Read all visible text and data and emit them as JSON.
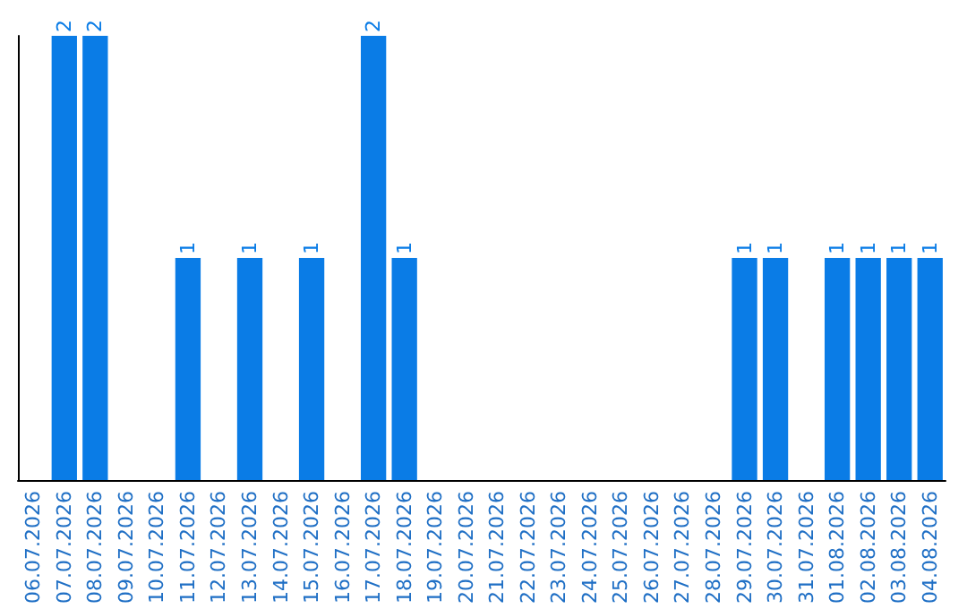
{
  "chart_data": {
    "type": "bar",
    "categories": [
      "06.07.2026",
      "07.07.2026",
      "08.07.2026",
      "09.07.2026",
      "10.07.2026",
      "11.07.2026",
      "12.07.2026",
      "13.07.2026",
      "14.07.2026",
      "15.07.2026",
      "16.07.2026",
      "17.07.2026",
      "18.07.2026",
      "19.07.2026",
      "20.07.2026",
      "21.07.2026",
      "22.07.2026",
      "23.07.2026",
      "24.07.2026",
      "25.07.2026",
      "26.07.2026",
      "27.07.2026",
      "28.07.2026",
      "29.07.2026",
      "30.07.2026",
      "31.07.2026",
      "01.08.2026",
      "02.08.2026",
      "03.08.2026",
      "04.08.2026"
    ],
    "values": [
      0,
      2,
      2,
      0,
      0,
      1,
      0,
      1,
      0,
      1,
      0,
      2,
      1,
      0,
      0,
      0,
      0,
      0,
      0,
      0,
      0,
      0,
      0,
      1,
      1,
      0,
      1,
      1,
      1,
      1
    ],
    "color": "#0a7ce6",
    "value_labels": [
      null,
      "2",
      "2",
      null,
      null,
      "1",
      null,
      "1",
      null,
      "1",
      null,
      "2",
      "1",
      null,
      null,
      null,
      null,
      null,
      null,
      null,
      null,
      null,
      null,
      "1",
      "1",
      null,
      "1",
      "1",
      "1",
      "1"
    ],
    "tick_labels": "x",
    "grid": false
  }
}
